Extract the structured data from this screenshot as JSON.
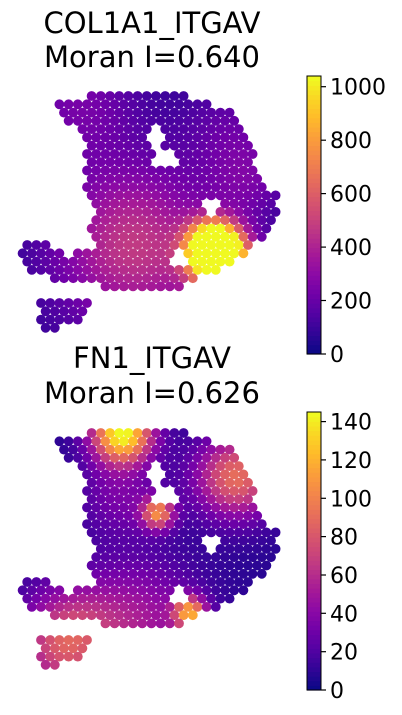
{
  "chart_data": [
    {
      "type": "heatmap",
      "title_line1": "COL1A1_ITGAV",
      "title_line2": "Moran I=0.640",
      "colormap": "plasma",
      "colorbar": {
        "min": 0,
        "max": 1040,
        "ticks": [
          0,
          200,
          400,
          600,
          800,
          1000
        ],
        "tick_labels": [
          "0",
          "200",
          "400",
          "600",
          "800",
          "1000"
        ]
      },
      "value_description": "spatial spot intensity",
      "hotspots": [
        {
          "region": "lower-right lobe edge",
          "value": 1030
        },
        {
          "region": "lower-right lobe",
          "value": 480
        },
        {
          "region": "central band",
          "value": 230
        },
        {
          "region": "top-left rim",
          "value": 180
        }
      ]
    },
    {
      "type": "heatmap",
      "title_line1": "FN1_ITGAV",
      "title_line2": "Moran I=0.626",
      "colormap": "plasma",
      "colorbar": {
        "min": 0,
        "max": 145,
        "ticks": [
          0,
          20,
          40,
          60,
          80,
          100,
          120,
          140
        ],
        "tick_labels": [
          "0",
          "20",
          "40",
          "60",
          "80",
          "100",
          "120",
          "140"
        ]
      },
      "value_description": "spatial spot intensity",
      "hotspots": [
        {
          "region": "top-center",
          "value": 140
        },
        {
          "region": "right edge",
          "value": 85
        },
        {
          "region": "center-left small cluster",
          "value": 90
        },
        {
          "region": "lower-right small cluster",
          "value": 95
        }
      ]
    }
  ]
}
